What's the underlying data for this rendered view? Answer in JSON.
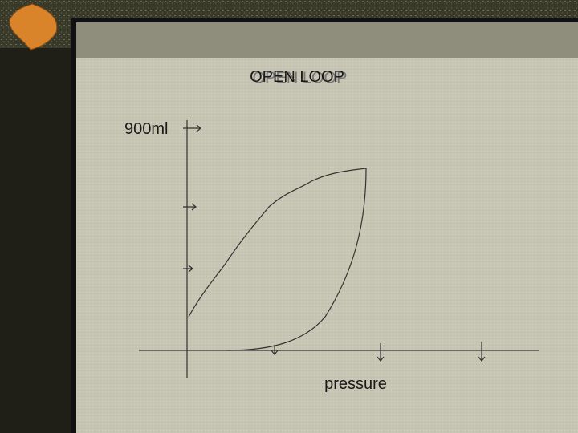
{
  "title": "OPEN LOOP",
  "y_label": "900ml",
  "x_label": "pressure"
}
